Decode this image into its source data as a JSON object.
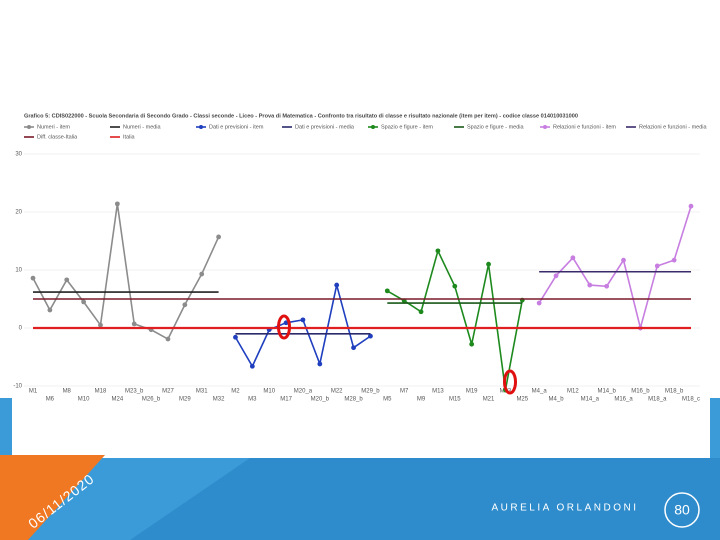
{
  "chart_data": {
    "type": "line",
    "title": "Grafico 5: CDIS022000 - Scuola Secondaria di Secondo Grado - Classi seconde - Liceo - Prova di Matematica - Confronto tra risultato di classe e risultato nazionale (item per item) - codice classe 014010031000",
    "categories": [
      "M1",
      "M6",
      "M8",
      "M10",
      "M18",
      "M24",
      "M23_b",
      "M26_b",
      "M27",
      "M29",
      "M31",
      "M32",
      "M2",
      "M3",
      "M10",
      "M17",
      "M20_a",
      "M20_b",
      "M22",
      "M28_b",
      "M29_b",
      "M5",
      "M7",
      "M9",
      "M13",
      "M15",
      "M19",
      "M21",
      "M23",
      "M25",
      "M4_a",
      "M4_b",
      "M12",
      "M14_a",
      "M14_b",
      "M16_a",
      "M16_b",
      "M18_a",
      "M18_b",
      "M18_c"
    ],
    "series": [
      {
        "name": "Numeri - item",
        "color": "#8c8c8c",
        "markers": true,
        "values": [
          8.6,
          3.1,
          8.3,
          4.5,
          0.5,
          21.4,
          0.7,
          -0.3,
          -1.9,
          4,
          9.3,
          15.7,
          null,
          null,
          null,
          null,
          null,
          null,
          null,
          null,
          null,
          null,
          null,
          null,
          null,
          null,
          null,
          null,
          null,
          null,
          null,
          null,
          null,
          null,
          null,
          null,
          null,
          null,
          null,
          null
        ]
      },
      {
        "name": "Numeri - media",
        "color": "#222222",
        "markers": false,
        "values": [
          6.2,
          6.2,
          6.2,
          6.2,
          6.2,
          6.2,
          6.2,
          6.2,
          6.2,
          6.2,
          6.2,
          6.2,
          null,
          null,
          null,
          null,
          null,
          null,
          null,
          null,
          null,
          null,
          null,
          null,
          null,
          null,
          null,
          null,
          null,
          null,
          null,
          null,
          null,
          null,
          null,
          null,
          null,
          null,
          null,
          null
        ]
      },
      {
        "name": "Dati e previsioni - item",
        "color": "#1f3fbf",
        "markers": true,
        "values": [
          null,
          null,
          null,
          null,
          null,
          null,
          null,
          null,
          null,
          null,
          null,
          null,
          -1.6,
          -6.6,
          -0.3,
          0.9,
          1.4,
          -6.2,
          7.4,
          -3.4,
          -1.4,
          null,
          null,
          null,
          null,
          null,
          null,
          null,
          null,
          null,
          null,
          null,
          null,
          null,
          null,
          null,
          null,
          null,
          null,
          null
        ]
      },
      {
        "name": "Dati e previsioni - media",
        "color": "#2a2a6a",
        "markers": false,
        "values": [
          null,
          null,
          null,
          null,
          null,
          null,
          null,
          null,
          null,
          null,
          null,
          null,
          -1,
          -1,
          -1,
          -1,
          -1,
          -1,
          -1,
          -1,
          -1,
          null,
          null,
          null,
          null,
          null,
          null,
          null,
          null,
          null,
          null,
          null,
          null,
          null,
          null,
          null,
          null,
          null,
          null,
          null
        ]
      },
      {
        "name": "Spazio e figure - item",
        "color": "#1e8a1e",
        "markers": true,
        "values": [
          null,
          null,
          null,
          null,
          null,
          null,
          null,
          null,
          null,
          null,
          null,
          null,
          null,
          null,
          null,
          null,
          null,
          null,
          null,
          null,
          null,
          6.4,
          4.7,
          2.8,
          13.3,
          7.2,
          -2.8,
          11,
          -10.7,
          4.8,
          null,
          null,
          null,
          null,
          null,
          null,
          null,
          null,
          null,
          null
        ]
      },
      {
        "name": "Spazio e figure - media",
        "color": "#1a5a1a",
        "markers": false,
        "values": [
          null,
          null,
          null,
          null,
          null,
          null,
          null,
          null,
          null,
          null,
          null,
          null,
          null,
          null,
          null,
          null,
          null,
          null,
          null,
          null,
          null,
          4.3,
          4.3,
          4.3,
          4.3,
          4.3,
          4.3,
          4.3,
          4.3,
          4.3,
          null,
          null,
          null,
          null,
          null,
          null,
          null,
          null,
          null,
          null
        ]
      },
      {
        "name": "Relazioni e funzioni - item",
        "color": "#c77ee0",
        "markers": true,
        "values": [
          null,
          null,
          null,
          null,
          null,
          null,
          null,
          null,
          null,
          null,
          null,
          null,
          null,
          null,
          null,
          null,
          null,
          null,
          null,
          null,
          null,
          null,
          null,
          null,
          null,
          null,
          null,
          null,
          null,
          null,
          4.3,
          9,
          12.1,
          7.4,
          7.2,
          11.7,
          0,
          10.7,
          11.7,
          21
        ]
      },
      {
        "name": "Relazioni e funzioni - media",
        "color": "#3a2a6a",
        "markers": false,
        "values": [
          null,
          null,
          null,
          null,
          null,
          null,
          null,
          null,
          null,
          null,
          null,
          null,
          null,
          null,
          null,
          null,
          null,
          null,
          null,
          null,
          null,
          null,
          null,
          null,
          null,
          null,
          null,
          null,
          null,
          null,
          9.7,
          9.7,
          9.7,
          9.7,
          9.7,
          9.7,
          9.7,
          9.7,
          9.7,
          9.7
        ]
      },
      {
        "name": "Diff. classe-Italia",
        "color": "#7a1a2a",
        "markers": false,
        "values": [
          5,
          5,
          5,
          5,
          5,
          5,
          5,
          5,
          5,
          5,
          5,
          5,
          5,
          5,
          5,
          5,
          5,
          5,
          5,
          5,
          5,
          5,
          5,
          5,
          5,
          5,
          5,
          5,
          5,
          5,
          5,
          5,
          5,
          5,
          5,
          5,
          5,
          5,
          5,
          5
        ]
      },
      {
        "name": "Italia",
        "color": "#e02020",
        "markers": false,
        "values": [
          0,
          0,
          0,
          0,
          0,
          0,
          0,
          0,
          0,
          0,
          0,
          0,
          0,
          0,
          0,
          0,
          0,
          0,
          0,
          0,
          0,
          0,
          0,
          0,
          0,
          0,
          0,
          0,
          0,
          0,
          0,
          0,
          0,
          0,
          0,
          0,
          0,
          0,
          0,
          0
        ]
      }
    ],
    "ylim": [
      -10,
      30
    ],
    "yticks": [
      -10,
      0,
      10,
      20,
      30
    ],
    "grid": true
  },
  "footer": {
    "date": "06/11/2020",
    "author": "AURELIA ORLANDONI",
    "page": "80"
  }
}
